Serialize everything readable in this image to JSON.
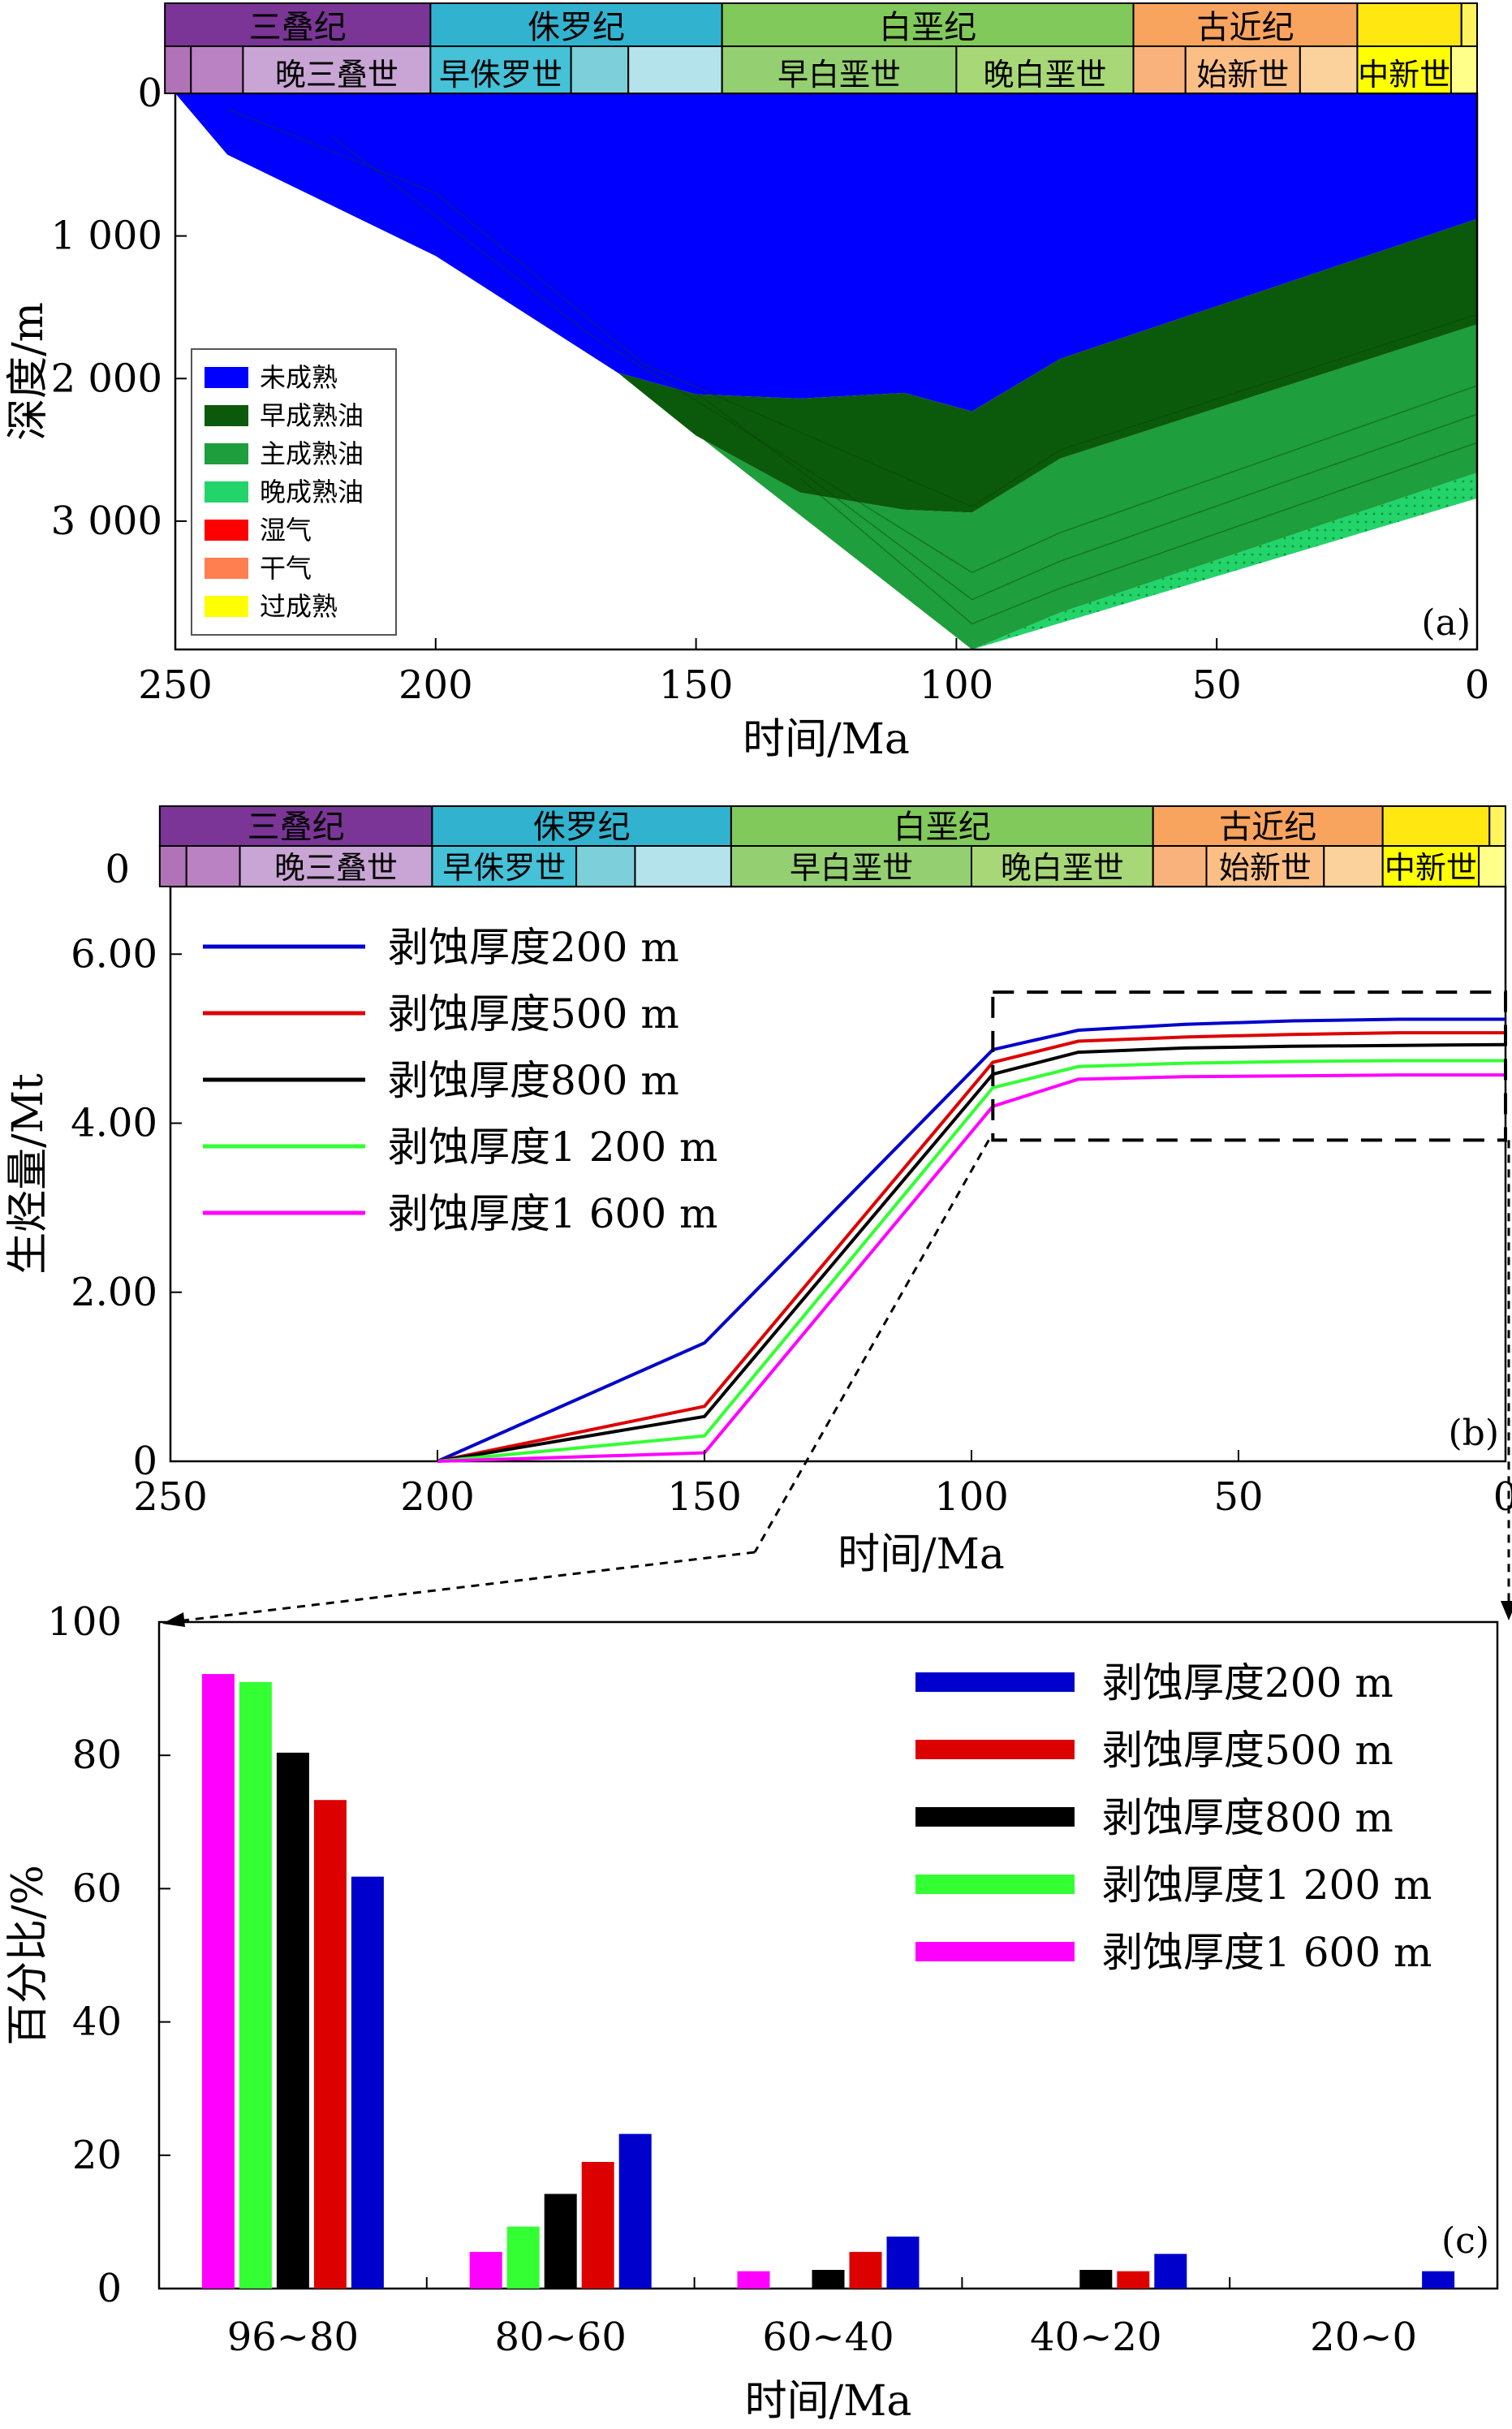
{
  "colors": {
    "unrestricted": "#0000ff",
    "early_oil": "#0b5a0b",
    "main_oil": "#1e9e3c",
    "late_oil": "#22d46a",
    "wet_gas": "#ff0000",
    "dry_gas": "#ff7f50",
    "overmature": "#ffff00",
    "triassic": "#7a3596",
    "jurassic": "#31b3cf",
    "cretaceous": "#81c95a",
    "paleogene": "#f8a35e",
    "neogene": "#ffe712",
    "series": [
      "#0000cc",
      "#dd0000",
      "#000000",
      "#33ff33",
      "#ff00ff"
    ]
  },
  "strat": {
    "periods": [
      {
        "name": "三叠纪",
        "from": 252,
        "to": 201,
        "color": "#7a3596"
      },
      {
        "name": "侏罗纪",
        "from": 201,
        "to": 145,
        "color": "#31b3cf"
      },
      {
        "name": "白垩纪",
        "from": 145,
        "to": 66,
        "color": "#81c95a"
      },
      {
        "name": "古近纪",
        "from": 66,
        "to": 23,
        "color": "#f8a35e"
      },
      {
        "name": "",
        "from": 23,
        "to": 3,
        "color": "#ffe712"
      },
      {
        "name": "",
        "from": 3,
        "to": 0,
        "color": "#fff45e"
      }
    ],
    "epochs": [
      {
        "name": "",
        "from": 252,
        "to": 247,
        "color": "#b173b8"
      },
      {
        "name": "",
        "from": 247,
        "to": 237,
        "color": "#ba82c3"
      },
      {
        "name": "晚三叠世",
        "from": 237,
        "to": 201,
        "color": "#c8a5d4"
      },
      {
        "name": "早侏罗世",
        "from": 201,
        "to": 174,
        "color": "#45c1d8"
      },
      {
        "name": "",
        "from": 174,
        "to": 163,
        "color": "#7dcfd9"
      },
      {
        "name": "",
        "from": 163,
        "to": 145,
        "color": "#b5e3ec"
      },
      {
        "name": "早白垩世",
        "from": 145,
        "to": 100,
        "color": "#94cf72"
      },
      {
        "name": "晚白垩世",
        "from": 100,
        "to": 66,
        "color": "#a7d777"
      },
      {
        "name": "",
        "from": 66,
        "to": 56,
        "color": "#fab27c"
      },
      {
        "name": "始新世",
        "from": 56,
        "to": 34,
        "color": "#fbbf86"
      },
      {
        "name": "",
        "from": 34,
        "to": 23,
        "color": "#fcd29c"
      },
      {
        "name": "中新世",
        "from": 23,
        "to": 5,
        "color": "#ffff00"
      },
      {
        "name": "",
        "from": 5,
        "to": 0,
        "color": "#ffff8a"
      }
    ]
  },
  "legend_a": {
    "items": [
      {
        "label": "未成熟",
        "key": "unrestricted"
      },
      {
        "label": "早成熟油",
        "key": "early_oil"
      },
      {
        "label": "主成熟油",
        "key": "main_oil"
      },
      {
        "label": "晚成熟油",
        "key": "late_oil"
      },
      {
        "label": "湿气",
        "key": "wet_gas"
      },
      {
        "label": "干气",
        "key": "dry_gas"
      },
      {
        "label": "过成熟",
        "key": "overmature"
      }
    ]
  },
  "chart_data": [
    {
      "id": "a",
      "type": "area",
      "panel_label": "(a)",
      "xlabel": "时间/Ma",
      "ylabel": "深度/m",
      "xlim": [
        250,
        0
      ],
      "ylim": [
        0,
        3900
      ],
      "xticks": [
        250,
        200,
        150,
        100,
        50,
        0
      ],
      "xtick_labels": [
        "250",
        "200",
        "150",
        "100",
        "50",
        "0"
      ],
      "yticks": [
        0,
        1000,
        2000,
        3000
      ],
      "ytick_labels": [
        "0",
        "1 000",
        "2 000",
        "3 000"
      ],
      "basement": {
        "x": [
          250,
          240,
          200,
          150,
          97,
          80,
          0
        ],
        "y": [
          0,
          430,
          1140,
          2540,
          3900,
          3640,
          2660
        ]
      },
      "zones": [
        {
          "name": "未成熟",
          "top": {
            "x": [
              250,
              0
            ],
            "y": [
              0,
              0
            ]
          },
          "bottom": {
            "x": [
              250,
              240,
              200,
              165,
              150,
              130,
              110,
              97,
              80,
              0
            ],
            "y": [
              0,
              430,
              1140,
              1960,
              2110,
              2140,
              2100,
              2230,
              1860,
              880
            ]
          }
        },
        {
          "name": "早成熟油",
          "bottom": {
            "x": [
              165,
              150,
              130,
              110,
              97,
              80,
              0
            ],
            "y": [
              1960,
              2400,
              2800,
              2920,
              2940,
              2560,
              1620
            ]
          }
        },
        {
          "name": "主成熟油",
          "bottom": {
            "x": [
              97,
              80,
              0
            ],
            "y": [
              3900,
              3640,
              2660
            ]
          }
        },
        {
          "name": "晚成熟油",
          "bottom": {
            "x": [
              97,
              0
            ],
            "y": [
              3900,
              2840
            ]
          }
        }
      ]
    },
    {
      "id": "b",
      "type": "line",
      "panel_label": "(b)",
      "xlabel": "时间/Ma",
      "ylabel": "生烃量/Mt",
      "xlim": [
        250,
        0
      ],
      "ylim": [
        0,
        6.8
      ],
      "xticks": [
        250,
        200,
        150,
        100,
        50,
        0
      ],
      "xtick_labels": [
        "250",
        "200",
        "150",
        "100",
        "50",
        "0"
      ],
      "yticks": [
        0,
        2,
        4,
        6
      ],
      "ytick_labels": [
        "0",
        "2.00",
        "4.00",
        "6.00"
      ],
      "x": [
        200,
        150,
        96,
        80,
        60,
        40,
        20,
        0
      ],
      "series": [
        {
          "name": "剥蚀厚度200 m",
          "values": [
            0,
            1.4,
            4.87,
            5.1,
            5.17,
            5.21,
            5.23,
            5.23
          ]
        },
        {
          "name": "剥蚀厚度500 m",
          "values": [
            0,
            0.65,
            4.72,
            4.97,
            5.02,
            5.05,
            5.07,
            5.07
          ]
        },
        {
          "name": "剥蚀厚度800 m",
          "values": [
            0,
            0.53,
            4.58,
            4.84,
            4.89,
            4.91,
            4.92,
            4.93
          ]
        },
        {
          "name": "剥蚀厚度1 200 m",
          "values": [
            0,
            0.3,
            4.42,
            4.67,
            4.71,
            4.73,
            4.74,
            4.74
          ]
        },
        {
          "name": "剥蚀厚度1 600 m",
          "values": [
            0,
            0.1,
            4.2,
            4.52,
            4.55,
            4.56,
            4.57,
            4.57
          ]
        }
      ],
      "highlight_box": {
        "x": [
          96,
          0
        ],
        "y": [
          3.8,
          5.55
        ]
      }
    },
    {
      "id": "c",
      "type": "bar",
      "panel_label": "(c)",
      "xlabel": "时间/Ma",
      "ylabel": "百分比/%",
      "ylim": [
        0,
        100
      ],
      "yticks": [
        0,
        20,
        40,
        60,
        80,
        100
      ],
      "ytick_labels": [
        "0",
        "20",
        "40",
        "60",
        "80",
        "100"
      ],
      "categories": [
        "96~80",
        "80~60",
        "60~40",
        "40~20",
        "20~0"
      ],
      "series": [
        {
          "name": "剥蚀厚度1 600 m",
          "values": [
            92.2,
            5.5,
            2.6,
            0,
            0
          ]
        },
        {
          "name": "剥蚀厚度1 200 m",
          "values": [
            91.0,
            9.3,
            0,
            0,
            0
          ]
        },
        {
          "name": "剥蚀厚度800 m",
          "values": [
            80.4,
            14.2,
            2.8,
            2.8,
            0
          ]
        },
        {
          "name": "剥蚀厚度500 m",
          "values": [
            73.3,
            19.0,
            5.5,
            2.6,
            0
          ]
        },
        {
          "name": "剥蚀厚度200 m",
          "values": [
            61.8,
            23.2,
            7.8,
            5.2,
            2.6
          ]
        }
      ],
      "legend_order": [
        "剥蚀厚度200 m",
        "剥蚀厚度500 m",
        "剥蚀厚度800 m",
        "剥蚀厚度1 200 m",
        "剥蚀厚度1 600 m"
      ]
    }
  ]
}
